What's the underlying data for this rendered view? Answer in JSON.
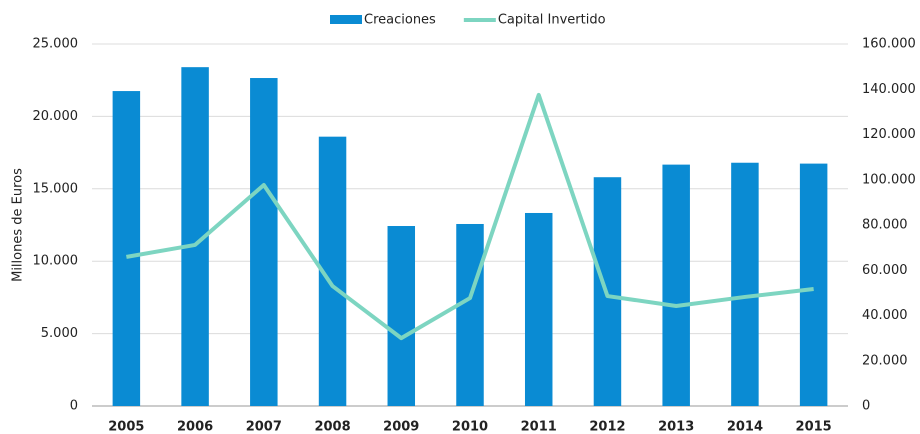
{
  "chart_data": {
    "type": "bar_line",
    "y_label": "Millones de Euros",
    "categories": [
      "2005",
      "2006",
      "2007",
      "2008",
      "2009",
      "2010",
      "2011",
      "2012",
      "2013",
      "2014",
      "2015"
    ],
    "series": [
      {
        "name": "Creaciones",
        "color": "#0a8bd3",
        "type": "bar",
        "axis": "y",
        "values": [
          21750,
          23400,
          22650,
          18600,
          12430,
          12570,
          13330,
          15800,
          16670,
          16800,
          16740
        ]
      },
      {
        "name": "Capital Invertido",
        "color": "#7dd5c1",
        "type": "line",
        "axis": "y2",
        "values": [
          65900,
          71200,
          97700,
          53000,
          30000,
          47700,
          137500,
          48600,
          44200,
          48200,
          51700
        ]
      }
    ],
    "ylim": [
      0,
      25000
    ],
    "yticks": [
      0,
      {
        "value": 5000,
        "label": "5.000"
      },
      {
        "value": 10000,
        "label": "10.000"
      },
      {
        "value": 15000,
        "label": "15.000"
      },
      {
        "value": 20000,
        "label": "20.000"
      },
      {
        "value": 25000,
        "label": "25.000"
      }
    ],
    "y2lim": [
      0,
      160000
    ],
    "y2ticks": [
      0,
      {
        "value": 20000,
        "label": "20.000"
      },
      {
        "value": 40000,
        "label": "40.000"
      },
      {
        "value": 60000,
        "label": "60.000"
      },
      {
        "value": 80000,
        "label": "80.000"
      },
      {
        "value": 100000,
        "label": "100.000"
      },
      {
        "value": 120000,
        "label": "120.000"
      },
      {
        "value": 140000,
        "label": "140.000"
      },
      {
        "value": 160000,
        "label": "160.000"
      }
    ],
    "grid": true,
    "legend": "top"
  }
}
